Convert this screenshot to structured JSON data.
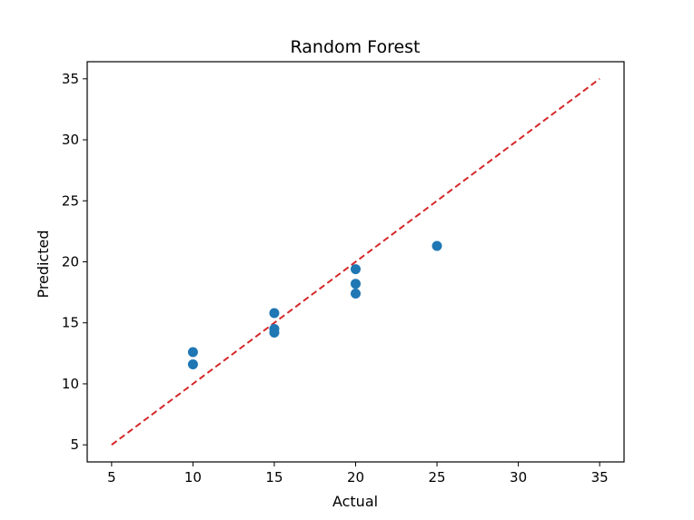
{
  "chart_data": {
    "type": "scatter",
    "title": "Random Forest",
    "xlabel": "Actual",
    "ylabel": "Predicted",
    "xlim": [
      3.5,
      36.5
    ],
    "ylim": [
      3.6,
      36.4
    ],
    "xticks": [
      5,
      10,
      15,
      20,
      25,
      30,
      35
    ],
    "yticks": [
      5,
      10,
      15,
      20,
      25,
      30,
      35
    ],
    "grid": false,
    "points": [
      {
        "x": 10,
        "y": 12.6
      },
      {
        "x": 10,
        "y": 11.6
      },
      {
        "x": 15,
        "y": 15.8
      },
      {
        "x": 15,
        "y": 14.5
      },
      {
        "x": 15,
        "y": 14.2
      },
      {
        "x": 20,
        "y": 19.4
      },
      {
        "x": 20,
        "y": 18.2
      },
      {
        "x": 20,
        "y": 17.4
      },
      {
        "x": 25,
        "y": 21.3
      }
    ],
    "reference_line": {
      "from": [
        5,
        5
      ],
      "to": [
        35,
        35
      ],
      "style": "dashed"
    },
    "colors": {
      "points": "#1f77b4",
      "reference_line": "#d62728"
    }
  }
}
